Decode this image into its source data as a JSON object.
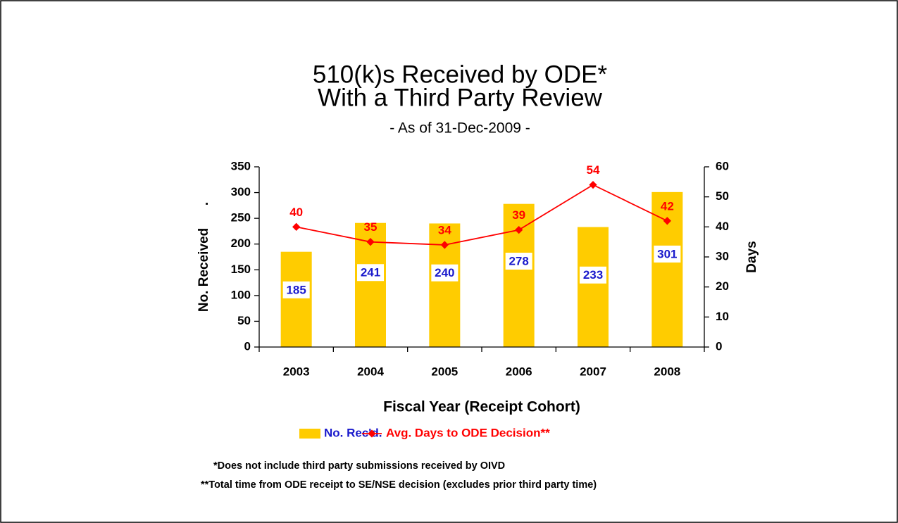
{
  "chart_data": {
    "type": "bar_line",
    "title": "510(k)s Received by ODE*",
    "title_line_2": "With a Third Party Review",
    "subtitle": "- As of 31-Dec-2009 -",
    "x_label": "Fiscal Year (Receipt Cohort)",
    "y_label": "No. Received      .",
    "y2_label": "Days",
    "categories": [
      "2003",
      "2004",
      "2005",
      "2006",
      "2007",
      "2008"
    ],
    "series": [
      {
        "name": "No. Rec'd.",
        "type": "bar",
        "color": "#ffcc00",
        "values": [
          185,
          241,
          240,
          278,
          233,
          301
        ]
      },
      {
        "name": "Avg. Days to ODE Decision**",
        "type": "line",
        "axis": "y2",
        "color": "#ff0000",
        "values": [
          40,
          35,
          34,
          39,
          54,
          42
        ]
      }
    ],
    "ylim": [
      0,
      350
    ],
    "yticks": [
      0,
      50,
      100,
      150,
      200,
      250,
      300,
      350
    ],
    "y2lim": [
      0,
      60
    ],
    "y2ticks": [
      0,
      10,
      20,
      30,
      40,
      50,
      60
    ],
    "legend": "bottom",
    "footnotes": [
      "*Does not include third party submissions received by OIVD",
      "**Total time from ODE receipt to SE/NSE decision (excludes prior third party time)"
    ]
  }
}
